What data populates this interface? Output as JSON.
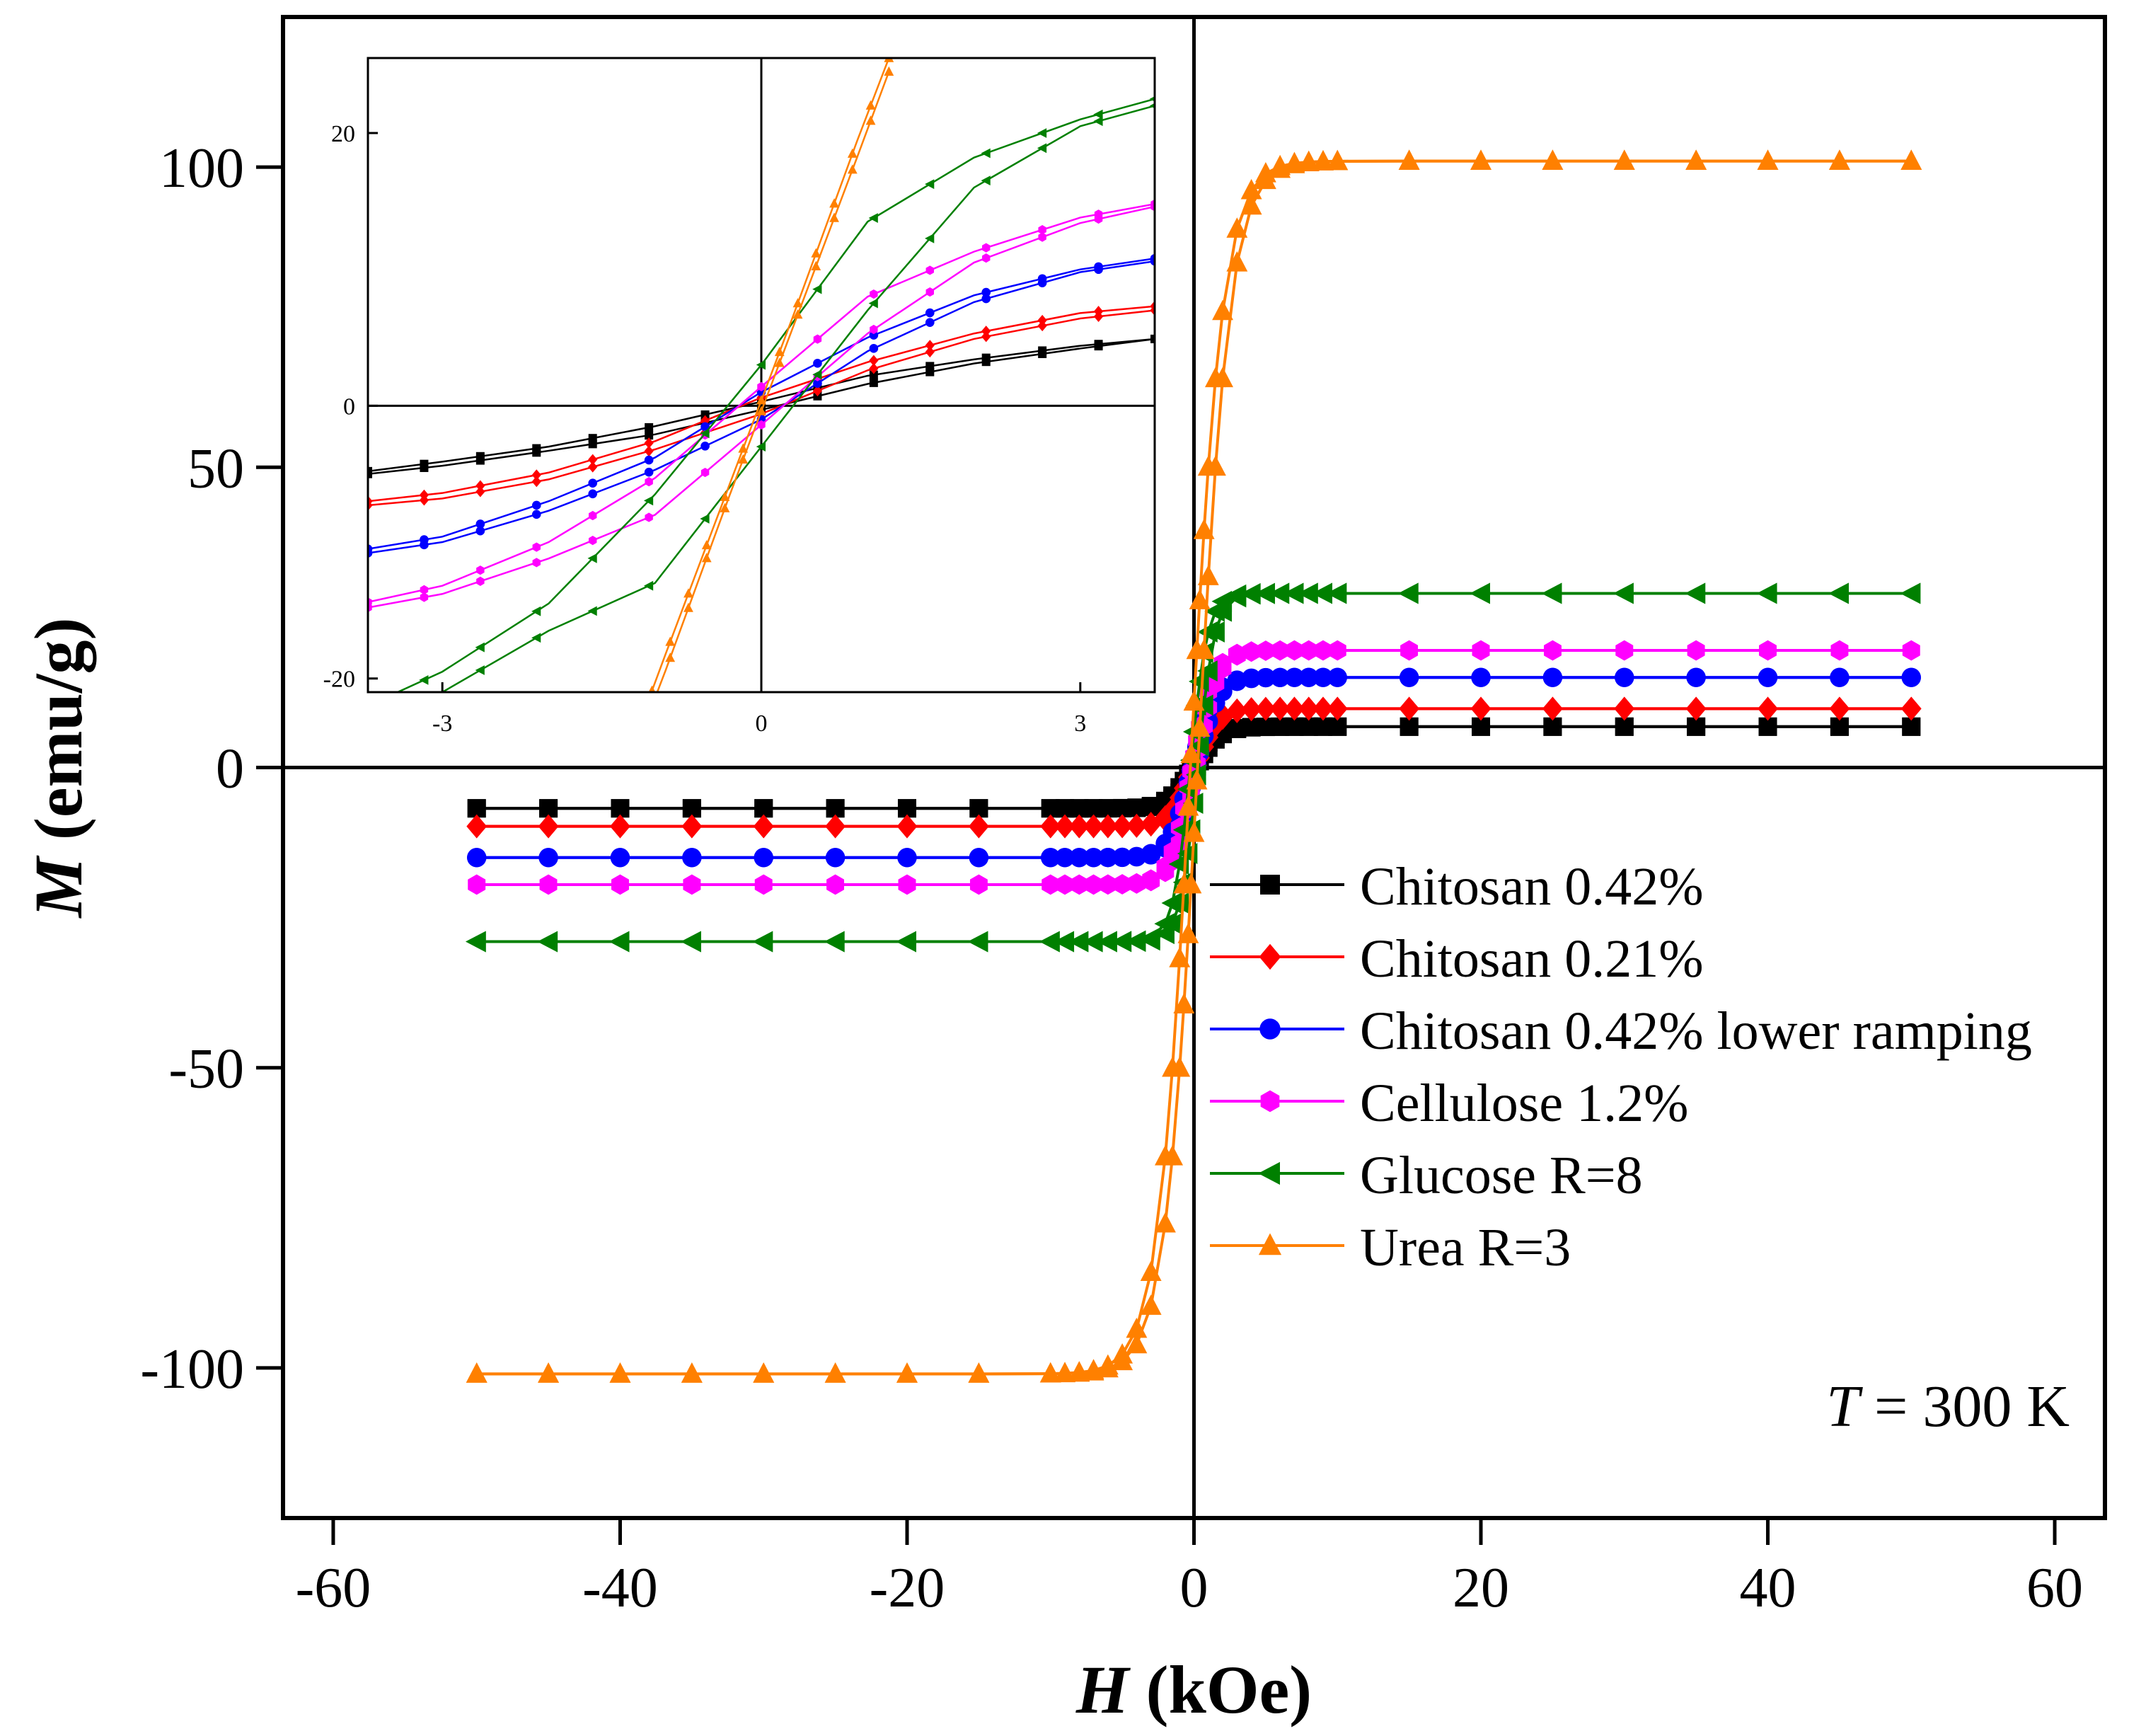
{
  "chart_data": [
    {
      "type": "line",
      "id": "main",
      "xlabel": {
        "var": "H",
        "unit": " (kOe)"
      },
      "ylabel": {
        "var": "M",
        "unit": " (emu/g)"
      },
      "xlim": [
        -63.5,
        63.5
      ],
      "ylim": [
        -125,
        125
      ],
      "xticks": [
        -60,
        -40,
        -20,
        0,
        20,
        40,
        60
      ],
      "yticks": [
        -100,
        -50,
        0,
        50,
        100
      ],
      "legend_position": "center-right",
      "annotation": {
        "var": "T",
        "rest": " = 300 K"
      },
      "series": [
        {
          "name": "Chitosan 0.42%",
          "color": "#000000",
          "marker": "square",
          "Ms": 6.8,
          "Hsat": 1.6,
          "Hc": 0.15
        },
        {
          "name": "Chitosan 0.21%",
          "color": "#ff0000",
          "marker": "diamond",
          "Ms": 9.8,
          "Hsat": 1.5,
          "Hc": 0.15
        },
        {
          "name": "Chitosan 0.42% lower ramping",
          "color": "#0000ff",
          "marker": "circle",
          "Ms": 15.0,
          "Hsat": 1.5,
          "Hc": 0.15
        },
        {
          "name": "Cellulose 1.2%",
          "color": "#ff00ff",
          "marker": "hexagon",
          "Ms": 19.5,
          "Hsat": 1.5,
          "Hc": 0.15
        },
        {
          "name": "Glucose R=8",
          "color": "#008000",
          "marker": "triangle-left",
          "Ms": 29.0,
          "Hsat": 1.2,
          "Hc": 0.25
        },
        {
          "name": "Urea R=3",
          "color": "#ff8000",
          "marker": "triangle-up",
          "Ms": 101.0,
          "Hsat": 2.3,
          "Hc": 0.25
        }
      ]
    },
    {
      "type": "line",
      "id": "inset",
      "xlim": [
        -3.7,
        3.7
      ],
      "ylim": [
        -21,
        25.5
      ],
      "xticks": [
        -3,
        0,
        3
      ],
      "yticks": [
        -20,
        0,
        20
      ],
      "series": [
        {
          "name": "Chitosan 0.42%",
          "color": "#000000",
          "x": [
            -3.7,
            -3,
            -2,
            -1,
            0,
            1,
            2,
            3,
            3.7
          ],
          "y_upper": [
            -4.8,
            -4.1,
            -3.0,
            -1.5,
            0.3,
            2.2,
            3.4,
            4.4,
            4.9
          ],
          "y_lower": [
            -5.0,
            -4.4,
            -3.3,
            -2.1,
            -0.3,
            1.6,
            3.1,
            4.2,
            4.9
          ]
        },
        {
          "name": "Chitosan 0.21%",
          "color": "#ff0000",
          "x": [
            -3.7,
            -3,
            -2,
            -1,
            0,
            1,
            2,
            3,
            3.7
          ],
          "y_upper": [
            -7.0,
            -6.4,
            -4.9,
            -2.6,
            0.6,
            3.2,
            5.3,
            6.8,
            7.3
          ],
          "y_lower": [
            -7.3,
            -6.8,
            -5.4,
            -3.2,
            -0.6,
            2.6,
            4.9,
            6.4,
            7.0
          ]
        },
        {
          "name": "Chitosan 0.42% lower ramping",
          "color": "#0000ff",
          "x": [
            -3.7,
            -3,
            -2,
            -1,
            0,
            1,
            2,
            3,
            3.7
          ],
          "y_upper": [
            -10.5,
            -9.6,
            -7.0,
            -3.8,
            1.0,
            5.0,
            8.1,
            10.0,
            10.8
          ],
          "y_lower": [
            -10.8,
            -10.0,
            -7.7,
            -4.7,
            -1.0,
            4.0,
            7.6,
            9.8,
            10.6
          ]
        },
        {
          "name": "Cellulose 1.2%",
          "color": "#ff00ff",
          "x": [
            -3.7,
            -3,
            -2,
            -1,
            0,
            1,
            2,
            3,
            3.7
          ],
          "y_upper": [
            -14.4,
            -13.2,
            -10.0,
            -5.3,
            1.4,
            8.0,
            11.3,
            13.8,
            14.8
          ],
          "y_lower": [
            -14.8,
            -13.8,
            -11.2,
            -8.0,
            -1.4,
            5.3,
            10.5,
            13.4,
            14.6
          ]
        },
        {
          "name": "Glucose R=8",
          "color": "#008000",
          "x": [
            -3.7,
            -3,
            -2,
            -1,
            0,
            1,
            2,
            3,
            3.7
          ],
          "y_upper": [
            -22.0,
            -19.5,
            -14.5,
            -6.5,
            3.0,
            13.5,
            18.2,
            21.0,
            22.5
          ],
          "y_lower": [
            -22.5,
            -21.0,
            -16.5,
            -13.0,
            -3.0,
            7.0,
            16.0,
            20.5,
            22.0
          ]
        },
        {
          "name": "Urea R=3",
          "color": "#ff8000",
          "x": [
            -1.2,
            -0.9,
            -0.6,
            -0.3,
            0,
            0.3,
            0.6,
            0.9,
            1.2
          ],
          "y_upper": [
            -25.5,
            -19.4,
            -13.0,
            -6.6,
            -0.4,
            5.8,
            12.0,
            18.2,
            24.5
          ],
          "y_lower": [
            -24.5,
            -18.2,
            -12.0,
            -5.8,
            0.4,
            6.6,
            13.0,
            19.4,
            25.5
          ]
        }
      ]
    }
  ]
}
